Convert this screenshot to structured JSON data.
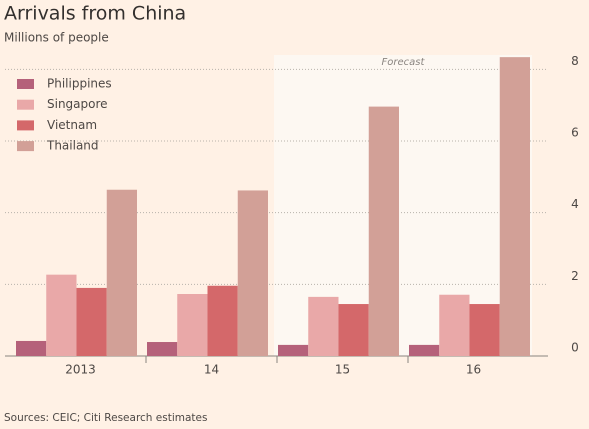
{
  "chart_data": {
    "type": "bar",
    "title": "Arrivals from China",
    "subtitle": "Millions of people",
    "source": "Sources: CEIC; Citi Research estimates",
    "categories": [
      "2013",
      "14",
      "15",
      "16"
    ],
    "series": [
      {
        "name": "Philippines",
        "color": "#b5617a",
        "values": [
          0.42,
          0.39,
          0.31,
          0.31
        ]
      },
      {
        "name": "Singapore",
        "color": "#e9a8a8",
        "values": [
          2.27,
          1.73,
          1.65,
          1.71
        ]
      },
      {
        "name": "Vietnam",
        "color": "#d4686a",
        "values": [
          1.9,
          1.96,
          1.45,
          1.45
        ]
      },
      {
        "name": "Thailand",
        "color": "#d2a097",
        "values": [
          4.64,
          4.62,
          6.96,
          8.34
        ]
      }
    ],
    "ylim": [
      0,
      8.4
    ],
    "yticks": [
      0,
      2,
      4,
      6,
      8
    ],
    "grid": true,
    "legend": "top-left",
    "forecast": {
      "label": "Forecast",
      "from": "15"
    }
  }
}
